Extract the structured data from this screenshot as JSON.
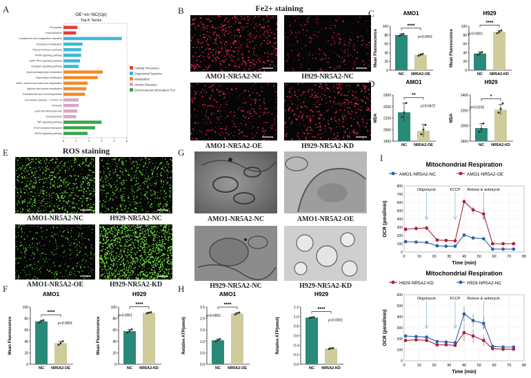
{
  "panels": {
    "A": "A",
    "B": "B",
    "C": "C",
    "D": "D",
    "E": "E",
    "F": "F",
    "G": "G",
    "H": "H",
    "I": "I"
  },
  "panelA": {
    "title": "OE−vs−NC(Up)",
    "subtitle": "Top K Terms",
    "xlabel": "−log10(P−value)",
    "ticks": [
      "0",
      "1",
      "2",
      "3",
      "4",
      "5"
    ],
    "legend": [
      {
        "label": "Cellular Processes",
        "color": "#e53d3d"
      },
      {
        "label": "Organismal Systems",
        "color": "#3cb8d8"
      },
      {
        "label": "Metabolism",
        "color": "#ef8c2f"
      },
      {
        "label": "Human Diseases",
        "color": "#d8a7c8"
      },
      {
        "label": "Environmental Information Processing",
        "color": "#3aa54b"
      }
    ]
  },
  "panelB": {
    "title": "Fe2+ staining",
    "labels": [
      "AMO1-NR5A2-NC",
      "H929-NR5A2-NC",
      "AMO1-NR5A2-OE",
      "H929-NR5A2-KD"
    ]
  },
  "panelE": {
    "title": "ROS staining",
    "labels": [
      "AMO1-NR5A2-NC",
      "H929-NR5A2-NC",
      "AMO1-NR5A2-OE",
      "H929-NR5A2-KD"
    ]
  },
  "panelG": {
    "labels": [
      "AMO1-NR5A2-NC",
      "AMO1-NR5A2-OE",
      "H929-NR5A2-NC",
      "H929-NR5A2-KD"
    ]
  },
  "chart_data": [
    {
      "id": "A",
      "type": "bar",
      "orientation": "horizontal",
      "title": "OE−vs−NC(Up)",
      "subtitle": "Top K Terms",
      "xlabel": "−log10(P−value)",
      "xlim": [
        0,
        5
      ],
      "categories": [
        "Ferroptosis",
        "Focal adhesion",
        "Complement and coagulation cascades",
        "Cholesterol metabolism",
        "Thyroid hormone synthesis",
        "PPAR signaling pathway",
        "cGMP-PKG signaling pathway",
        "Glucagon signaling pathway",
        "Glycerophospholipid metabolism",
        "Glycerolipid metabolism",
        "Valine, leucine and isoleucine degradation",
        "Arginine and proline metabolism",
        "Pantothenate and CoA biosynthesis",
        "Coronavirus disease − COVID−19",
        "Pertussis",
        "Lipid and atherosclerosis",
        "Toxoplasmosis",
        "TNF signaling pathway",
        "ECM−receptor interaction",
        "MAPK signaling pathway"
      ],
      "values": [
        1.1,
        1.0,
        4.6,
        1.5,
        1.4,
        1.4,
        1.3,
        1.2,
        3.1,
        2.7,
        1.9,
        1.8,
        1.7,
        1.2,
        1.2,
        1.1,
        1.0,
        3.0,
        2.5,
        1.9
      ],
      "colors": [
        "#e53d3d",
        "#e53d3d",
        "#3cb8d8",
        "#3cb8d8",
        "#3cb8d8",
        "#3cb8d8",
        "#3cb8d8",
        "#3cb8d8",
        "#ef8c2f",
        "#ef8c2f",
        "#ef8c2f",
        "#ef8c2f",
        "#ef8c2f",
        "#d8a7c8",
        "#d8a7c8",
        "#d8a7c8",
        "#d8a7c8",
        "#3aa54b",
        "#3aa54b",
        "#3aa54b"
      ]
    },
    {
      "id": "C1",
      "type": "bar",
      "title": "AMO1",
      "ylabel": "Mean Fluorescence",
      "categories": [
        "NC",
        "NR5A2-OE"
      ],
      "values": [
        80,
        35
      ],
      "colors": [
        "#2a8a7a",
        "#cfcb9a"
      ],
      "ylim": [
        0,
        100
      ],
      "yticks": [
        "0",
        "20",
        "40",
        "60",
        "80",
        "100"
      ],
      "sig": "****",
      "p": "p<0.0001",
      "pside": "right",
      "points": [
        [
          78,
          80,
          82
        ],
        [
          33,
          35,
          37
        ]
      ],
      "err": [
        3,
        2
      ]
    },
    {
      "id": "C2",
      "type": "bar",
      "title": "H929",
      "ylabel": "Mean Fluorescence",
      "categories": [
        "NC",
        "NR5A2-KD"
      ],
      "values": [
        38,
        87
      ],
      "colors": [
        "#2a8a7a",
        "#cfcb9a"
      ],
      "ylim": [
        0,
        100
      ],
      "yticks": [
        "0",
        "20",
        "40",
        "60",
        "80",
        "100"
      ],
      "sig": "****",
      "p": "p<0.0001",
      "pside": "left",
      "points": [
        [
          35,
          38,
          41
        ],
        [
          84,
          87,
          90
        ]
      ],
      "err": [
        4,
        3
      ]
    },
    {
      "id": "D1",
      "type": "bar",
      "title": "AMO1",
      "ylabel": "MDA",
      "categories": [
        "NC",
        "NR5A2-OE"
      ],
      "values": [
        2150,
        1990
      ],
      "colors": [
        "#2a8a7a",
        "#cfcb9a"
      ],
      "ylim": [
        1900,
        2300
      ],
      "yticks": [
        "1900",
        "2000",
        "2100",
        "2200",
        "2300"
      ],
      "sig": "**",
      "p": "p=0.0472",
      "pside": "right",
      "points": [
        [
          2110,
          2150,
          2230
        ],
        [
          1960,
          2000,
          2040
        ]
      ],
      "err": [
        80,
        55
      ]
    },
    {
      "id": "D2",
      "type": "bar",
      "title": "H929",
      "ylabel": "MDA",
      "categories": [
        "NC",
        "NR5A2-KD"
      ],
      "values": [
        1970,
        2210
      ],
      "colors": [
        "#2a8a7a",
        "#cfcb9a"
      ],
      "ylim": [
        1800,
        2400
      ],
      "yticks": [
        "1800",
        "2000",
        "2200",
        "2400"
      ],
      "sig": "*",
      "p": "p=0.0156",
      "pside": "left",
      "points": [
        [
          1920,
          1960,
          2030
        ],
        [
          2170,
          2220,
          2290
        ]
      ],
      "err": [
        60,
        70
      ]
    },
    {
      "id": "F1",
      "type": "bar",
      "title": "AMO1",
      "ylabel": "Mean Fluorescence",
      "categories": [
        "NC",
        "NR5A2-OE"
      ],
      "values": [
        75,
        37
      ],
      "colors": [
        "#2a8a7a",
        "#cfcb9a"
      ],
      "ylim": [
        0,
        100
      ],
      "yticks": [
        "0",
        "20",
        "40",
        "60",
        "80",
        "100"
      ],
      "sig": "****",
      "p": "p<0.0001",
      "pside": "right",
      "points": [
        [
          73,
          75,
          77
        ],
        [
          34,
          37,
          40
        ]
      ],
      "err": [
        2,
        3
      ]
    },
    {
      "id": "F2",
      "type": "bar",
      "title": "H929",
      "ylabel": "Mean Fluorescence",
      "categories": [
        "NC",
        "NR5A2-KD"
      ],
      "values": [
        58,
        90
      ],
      "colors": [
        "#2a8a7a",
        "#cfcb9a"
      ],
      "ylim": [
        0,
        100
      ],
      "yticks": [
        "0",
        "20",
        "40",
        "60",
        "80",
        "100"
      ],
      "sig": "****",
      "p": "p<0.0001",
      "pside": "left",
      "points": [
        [
          55,
          58,
          61
        ],
        [
          89,
          90,
          91
        ]
      ],
      "err": [
        3,
        1
      ]
    },
    {
      "id": "H1",
      "type": "bar",
      "title": "AMO1",
      "ylabel": "Relative ATP(umol)",
      "categories": [
        "NC",
        "NR5A2-OE"
      ],
      "values": [
        1.05,
        2.22
      ],
      "colors": [
        "#2a8a7a",
        "#cfcb9a"
      ],
      "ylim": [
        0,
        2.5
      ],
      "yticks": [
        "0.0",
        "0.5",
        "1.0",
        "1.5",
        "2.0",
        "2.5"
      ],
      "sig": "****",
      "p": "p<0.0001",
      "pside": "left",
      "points": [
        [
          1.0,
          1.05,
          1.1
        ],
        [
          2.18,
          2.22,
          2.26
        ]
      ],
      "err": [
        0.05,
        0.04
      ]
    },
    {
      "id": "H2",
      "type": "bar",
      "title": "H929",
      "ylabel": "Relative ATP(umol)",
      "categories": [
        "NC",
        "NR5A2-KD"
      ],
      "values": [
        0.98,
        0.33
      ],
      "colors": [
        "#2a8a7a",
        "#cfcb9a"
      ],
      "ylim": [
        0,
        1.2
      ],
      "yticks": [
        "0.0",
        "0.2",
        "0.4",
        "0.6",
        "0.8",
        "1.0",
        "1.2"
      ],
      "sig": "****",
      "p": "p<0.0001",
      "pside": "right",
      "points": [
        [
          0.97,
          0.98,
          0.99
        ],
        [
          0.32,
          0.33,
          0.34
        ]
      ],
      "err": [
        0.01,
        0.01
      ]
    },
    {
      "id": "I1",
      "type": "line",
      "title": "Mitochondrial Respiration",
      "xlabel": "Time (min)",
      "ylabel": "OCR (pmol/min)",
      "xlim": [
        0,
        80
      ],
      "ylim": [
        0,
        800
      ],
      "xticks": [
        "0",
        "10",
        "20",
        "30",
        "40",
        "50",
        "60",
        "70",
        "80"
      ],
      "yticks": [
        "0",
        "100",
        "200",
        "300",
        "400",
        "500",
        "600",
        "700",
        "800"
      ],
      "x": [
        1,
        8,
        15,
        22,
        28,
        34,
        40,
        46,
        53,
        59,
        66,
        73
      ],
      "series": [
        {
          "name": "AMO1-NR5A2-NC",
          "color": "#2f5fa8",
          "values": [
            125,
            120,
            115,
            75,
            70,
            70,
            205,
            170,
            160,
            35,
            35,
            35
          ],
          "err": [
            12,
            10,
            10,
            8,
            8,
            8,
            15,
            15,
            15,
            5,
            5,
            5
          ]
        },
        {
          "name": "AMO1-NR5A2-OE",
          "color": "#b11d3a",
          "values": [
            275,
            285,
            290,
            145,
            140,
            135,
            610,
            510,
            460,
            100,
            100,
            100
          ],
          "err": [
            25,
            25,
            25,
            15,
            15,
            15,
            30,
            40,
            70,
            12,
            10,
            10
          ]
        }
      ],
      "annotations": [
        "Oligomycin",
        "FCCP",
        "Retone & antimycin"
      ],
      "annotation_x": [
        15,
        34,
        53
      ]
    },
    {
      "id": "I2",
      "type": "line",
      "title": "Mitochondrial Respiration",
      "xlabel": "Time (min)",
      "ylabel": "OCR (pmol/min)",
      "xlim": [
        0,
        80
      ],
      "ylim": [
        0,
        600
      ],
      "xticks": [
        "0",
        "10",
        "20",
        "30",
        "40",
        "50",
        "60",
        "70",
        "80"
      ],
      "yticks": [
        "0",
        "100",
        "200",
        "300",
        "400",
        "500",
        "600"
      ],
      "x": [
        1,
        8,
        15,
        22,
        28,
        34,
        40,
        46,
        53,
        59,
        66,
        73
      ],
      "series": [
        {
          "name": "H929-NR5A2-KD",
          "color": "#b11d3a",
          "values": [
            185,
            190,
            185,
            145,
            145,
            140,
            255,
            225,
            185,
            110,
            105,
            105
          ],
          "err": [
            15,
            15,
            15,
            12,
            12,
            12,
            80,
            60,
            50,
            12,
            10,
            10
          ]
        },
        {
          "name": "H929-NR5A2-NC",
          "color": "#2f5fa8",
          "values": [
            225,
            220,
            215,
            175,
            170,
            165,
            425,
            365,
            340,
            130,
            125,
            125
          ],
          "err": [
            15,
            15,
            15,
            12,
            12,
            12,
            70,
            60,
            60,
            12,
            12,
            12
          ]
        }
      ],
      "annotations": [
        "Oligomycin",
        "FCCP",
        "Retone & antimycin"
      ],
      "annotation_x": [
        15,
        34,
        53
      ]
    }
  ]
}
